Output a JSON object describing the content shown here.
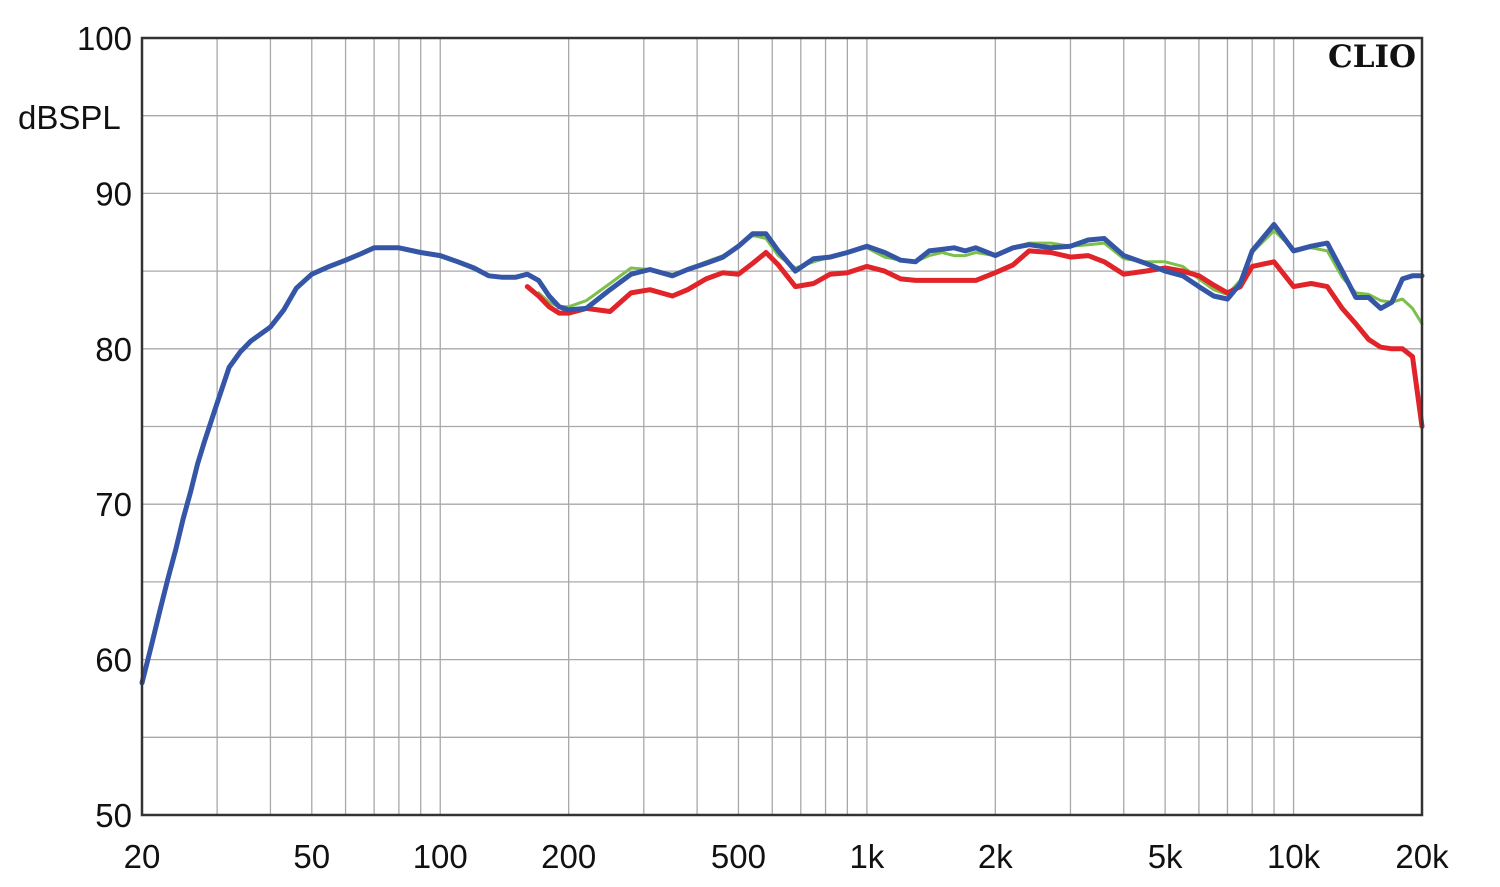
{
  "chart_data": {
    "type": "line",
    "ylabel": "dBSPL",
    "watermark": "CLIO",
    "x_scale": "log",
    "xlim": [
      20,
      20000
    ],
    "ylim": [
      50,
      100
    ],
    "x_ticks": [
      {
        "value": 20,
        "label": "20"
      },
      {
        "value": 50,
        "label": "50"
      },
      {
        "value": 100,
        "label": "100"
      },
      {
        "value": 200,
        "label": "200"
      },
      {
        "value": 500,
        "label": "500"
      },
      {
        "value": 1000,
        "label": "1k"
      },
      {
        "value": 2000,
        "label": "2k"
      },
      {
        "value": 5000,
        "label": "5k"
      },
      {
        "value": 10000,
        "label": "10k"
      },
      {
        "value": 20000,
        "label": "20k"
      }
    ],
    "y_ticks": [
      {
        "value": 50,
        "label": "50"
      },
      {
        "value": 60,
        "label": "60"
      },
      {
        "value": 70,
        "label": "70"
      },
      {
        "value": 80,
        "label": "80"
      },
      {
        "value": 90,
        "label": "90"
      },
      {
        "value": 100,
        "label": "100"
      }
    ],
    "grid": true,
    "colors": {
      "grid": "#a8a8a8",
      "axes": "#333333",
      "green": "#7cbf4a",
      "red": "#e0242a",
      "blue": "#3556a6"
    },
    "series": [
      {
        "color": "#7cbf4a",
        "width": 3,
        "points": [
          [
            170,
            83.6
          ],
          [
            180,
            83.0
          ],
          [
            190,
            82.7
          ],
          [
            200,
            82.7
          ],
          [
            220,
            83.1
          ],
          [
            250,
            84.2
          ],
          [
            280,
            85.2
          ],
          [
            310,
            85.1
          ],
          [
            350,
            84.8
          ],
          [
            380,
            85.1
          ],
          [
            420,
            85.6
          ],
          [
            460,
            86.0
          ],
          [
            500,
            86.6
          ],
          [
            540,
            87.3
          ],
          [
            580,
            87.1
          ],
          [
            620,
            86.0
          ],
          [
            680,
            85.2
          ],
          [
            750,
            85.6
          ],
          [
            820,
            85.9
          ],
          [
            900,
            86.2
          ],
          [
            1000,
            86.5
          ],
          [
            1100,
            85.9
          ],
          [
            1200,
            85.7
          ],
          [
            1300,
            85.6
          ],
          [
            1400,
            86.0
          ],
          [
            1500,
            86.2
          ],
          [
            1600,
            86.0
          ],
          [
            1700,
            86.0
          ],
          [
            1800,
            86.2
          ],
          [
            2000,
            86.0
          ],
          [
            2200,
            86.5
          ],
          [
            2400,
            86.8
          ],
          [
            2700,
            86.8
          ],
          [
            3000,
            86.6
          ],
          [
            3300,
            86.7
          ],
          [
            3600,
            86.8
          ],
          [
            4000,
            85.8
          ],
          [
            4500,
            85.6
          ],
          [
            5000,
            85.6
          ],
          [
            5500,
            85.3
          ],
          [
            6000,
            84.5
          ],
          [
            6500,
            83.8
          ],
          [
            7000,
            83.5
          ],
          [
            7500,
            84.4
          ],
          [
            8000,
            86.2
          ],
          [
            9000,
            87.6
          ],
          [
            10000,
            86.4
          ],
          [
            11000,
            86.5
          ],
          [
            12000,
            86.3
          ],
          [
            13000,
            84.6
          ],
          [
            14000,
            83.6
          ],
          [
            15000,
            83.5
          ],
          [
            16000,
            83.1
          ],
          [
            17000,
            83.0
          ],
          [
            18000,
            83.2
          ],
          [
            19000,
            82.6
          ],
          [
            20000,
            81.6
          ]
        ]
      },
      {
        "color": "#e0242a",
        "width": 5,
        "points": [
          [
            160,
            84.0
          ],
          [
            170,
            83.4
          ],
          [
            180,
            82.7
          ],
          [
            190,
            82.3
          ],
          [
            200,
            82.3
          ],
          [
            220,
            82.6
          ],
          [
            250,
            82.4
          ],
          [
            280,
            83.6
          ],
          [
            310,
            83.8
          ],
          [
            350,
            83.4
          ],
          [
            380,
            83.8
          ],
          [
            420,
            84.5
          ],
          [
            460,
            84.9
          ],
          [
            500,
            84.8
          ],
          [
            540,
            85.5
          ],
          [
            580,
            86.2
          ],
          [
            620,
            85.4
          ],
          [
            680,
            84.0
          ],
          [
            750,
            84.2
          ],
          [
            820,
            84.8
          ],
          [
            900,
            84.9
          ],
          [
            1000,
            85.3
          ],
          [
            1100,
            85.0
          ],
          [
            1200,
            84.5
          ],
          [
            1300,
            84.4
          ],
          [
            1400,
            84.4
          ],
          [
            1600,
            84.4
          ],
          [
            1800,
            84.4
          ],
          [
            2000,
            84.9
          ],
          [
            2200,
            85.4
          ],
          [
            2400,
            86.3
          ],
          [
            2700,
            86.2
          ],
          [
            3000,
            85.9
          ],
          [
            3300,
            86.0
          ],
          [
            3600,
            85.6
          ],
          [
            4000,
            84.8
          ],
          [
            4500,
            85.0
          ],
          [
            5000,
            85.2
          ],
          [
            5500,
            85.0
          ],
          [
            6000,
            84.7
          ],
          [
            6500,
            84.1
          ],
          [
            7000,
            83.6
          ],
          [
            7500,
            84.0
          ],
          [
            8000,
            85.3
          ],
          [
            9000,
            85.6
          ],
          [
            10000,
            84.0
          ],
          [
            11000,
            84.2
          ],
          [
            12000,
            84.0
          ],
          [
            13000,
            82.6
          ],
          [
            14000,
            81.6
          ],
          [
            15000,
            80.6
          ],
          [
            16000,
            80.1
          ],
          [
            17000,
            80.0
          ],
          [
            18000,
            80.0
          ],
          [
            19000,
            79.5
          ],
          [
            20000,
            75.0
          ]
        ]
      },
      {
        "color": "#3556a6",
        "width": 5,
        "points": [
          [
            20,
            58.5
          ],
          [
            21,
            60.8
          ],
          [
            22,
            63.1
          ],
          [
            23,
            65.2
          ],
          [
            24,
            67.1
          ],
          [
            25,
            69.1
          ],
          [
            26,
            70.8
          ],
          [
            27,
            72.6
          ],
          [
            28,
            74.0
          ],
          [
            30,
            76.5
          ],
          [
            32,
            78.8
          ],
          [
            34,
            79.8
          ],
          [
            36,
            80.5
          ],
          [
            40,
            81.4
          ],
          [
            43,
            82.5
          ],
          [
            46,
            83.9
          ],
          [
            50,
            84.8
          ],
          [
            55,
            85.3
          ],
          [
            60,
            85.7
          ],
          [
            65,
            86.1
          ],
          [
            70,
            86.5
          ],
          [
            80,
            86.5
          ],
          [
            90,
            86.2
          ],
          [
            100,
            86.0
          ],
          [
            110,
            85.6
          ],
          [
            120,
            85.2
          ],
          [
            130,
            84.7
          ],
          [
            140,
            84.6
          ],
          [
            150,
            84.6
          ],
          [
            160,
            84.8
          ],
          [
            170,
            84.4
          ],
          [
            180,
            83.4
          ],
          [
            190,
            82.7
          ],
          [
            200,
            82.5
          ],
          [
            220,
            82.6
          ],
          [
            250,
            83.8
          ],
          [
            280,
            84.8
          ],
          [
            310,
            85.1
          ],
          [
            350,
            84.7
          ],
          [
            380,
            85.1
          ],
          [
            420,
            85.5
          ],
          [
            460,
            85.9
          ],
          [
            500,
            86.6
          ],
          [
            540,
            87.4
          ],
          [
            580,
            87.4
          ],
          [
            620,
            86.3
          ],
          [
            680,
            85.0
          ],
          [
            750,
            85.8
          ],
          [
            820,
            85.9
          ],
          [
            900,
            86.2
          ],
          [
            1000,
            86.6
          ],
          [
            1100,
            86.2
          ],
          [
            1200,
            85.7
          ],
          [
            1300,
            85.6
          ],
          [
            1400,
            86.3
          ],
          [
            1500,
            86.4
          ],
          [
            1600,
            86.5
          ],
          [
            1700,
            86.3
          ],
          [
            1800,
            86.5
          ],
          [
            2000,
            86.0
          ],
          [
            2200,
            86.5
          ],
          [
            2400,
            86.7
          ],
          [
            2700,
            86.5
          ],
          [
            3000,
            86.6
          ],
          [
            3300,
            87.0
          ],
          [
            3600,
            87.1
          ],
          [
            4000,
            86.0
          ],
          [
            4500,
            85.5
          ],
          [
            5000,
            85.0
          ],
          [
            5500,
            84.7
          ],
          [
            6000,
            84.0
          ],
          [
            6500,
            83.4
          ],
          [
            7000,
            83.2
          ],
          [
            7500,
            84.2
          ],
          [
            8000,
            86.3
          ],
          [
            9000,
            88.0
          ],
          [
            10000,
            86.3
          ],
          [
            11000,
            86.6
          ],
          [
            12000,
            86.8
          ],
          [
            13000,
            85.0
          ],
          [
            14000,
            83.3
          ],
          [
            15000,
            83.3
          ],
          [
            16000,
            82.6
          ],
          [
            17000,
            83.0
          ],
          [
            18000,
            84.5
          ],
          [
            19000,
            84.7
          ],
          [
            20000,
            84.7
          ]
        ]
      }
    ]
  }
}
